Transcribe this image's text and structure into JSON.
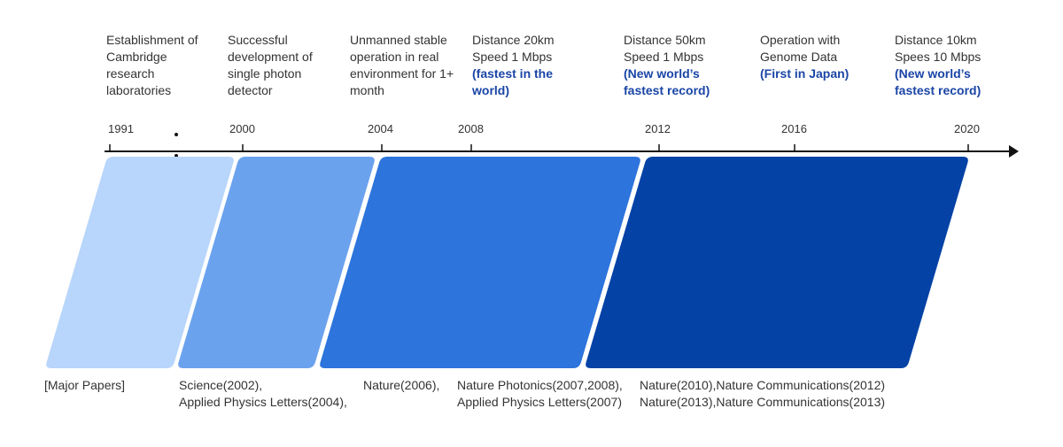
{
  "milestones": [
    {
      "lines": [
        "Establishment of",
        "Cambridge",
        "research",
        "laboratories"
      ],
      "highlight": []
    },
    {
      "lines": [
        "Successful",
        "development of",
        "single photon",
        "detector"
      ],
      "highlight": []
    },
    {
      "lines": [
        "Unmanned stable",
        "operation in real",
        "environment for 1+",
        "month"
      ],
      "highlight": []
    },
    {
      "lines": [
        "Distance 20km",
        "Speed 1 Mbps"
      ],
      "highlight": [
        "(fastest in the",
        "world)"
      ]
    },
    {
      "lines": [
        "Distance 50km",
        "Speed 1 Mbps"
      ],
      "highlight": [
        "(New world’s",
        "fastest record)"
      ]
    },
    {
      "lines": [
        "Operation with",
        "Genome Data"
      ],
      "highlight": [
        "(First in Japan)"
      ]
    },
    {
      "lines": [
        "Distance 10km",
        "Spees 10 Mbps"
      ],
      "highlight": [
        "(New world’s",
        "fastest record)"
      ]
    }
  ],
  "years": [
    "1991",
    "2000",
    "2004",
    "2008",
    "2012",
    "2016",
    "2020"
  ],
  "papers": {
    "label": "[Major Papers]",
    "groups": [
      [
        "Science(2002),",
        "Applied Physics Letters(2004),"
      ],
      [
        "Nature(2006),"
      ],
      [
        "Nature Photonics(2007,2008),",
        "Applied Physics Letters(2007)"
      ],
      [
        "Nature(2010),Nature Communications(2012)",
        "Nature(2013),Nature Communications(2013)"
      ]
    ]
  },
  "colors": {
    "phase1": "#b8d5fb",
    "phase2": "#6aa2ee",
    "phase3": "#2d74dc",
    "phase4": "#0442a6",
    "axis": "#111111",
    "highlight": "#1a45a6"
  }
}
